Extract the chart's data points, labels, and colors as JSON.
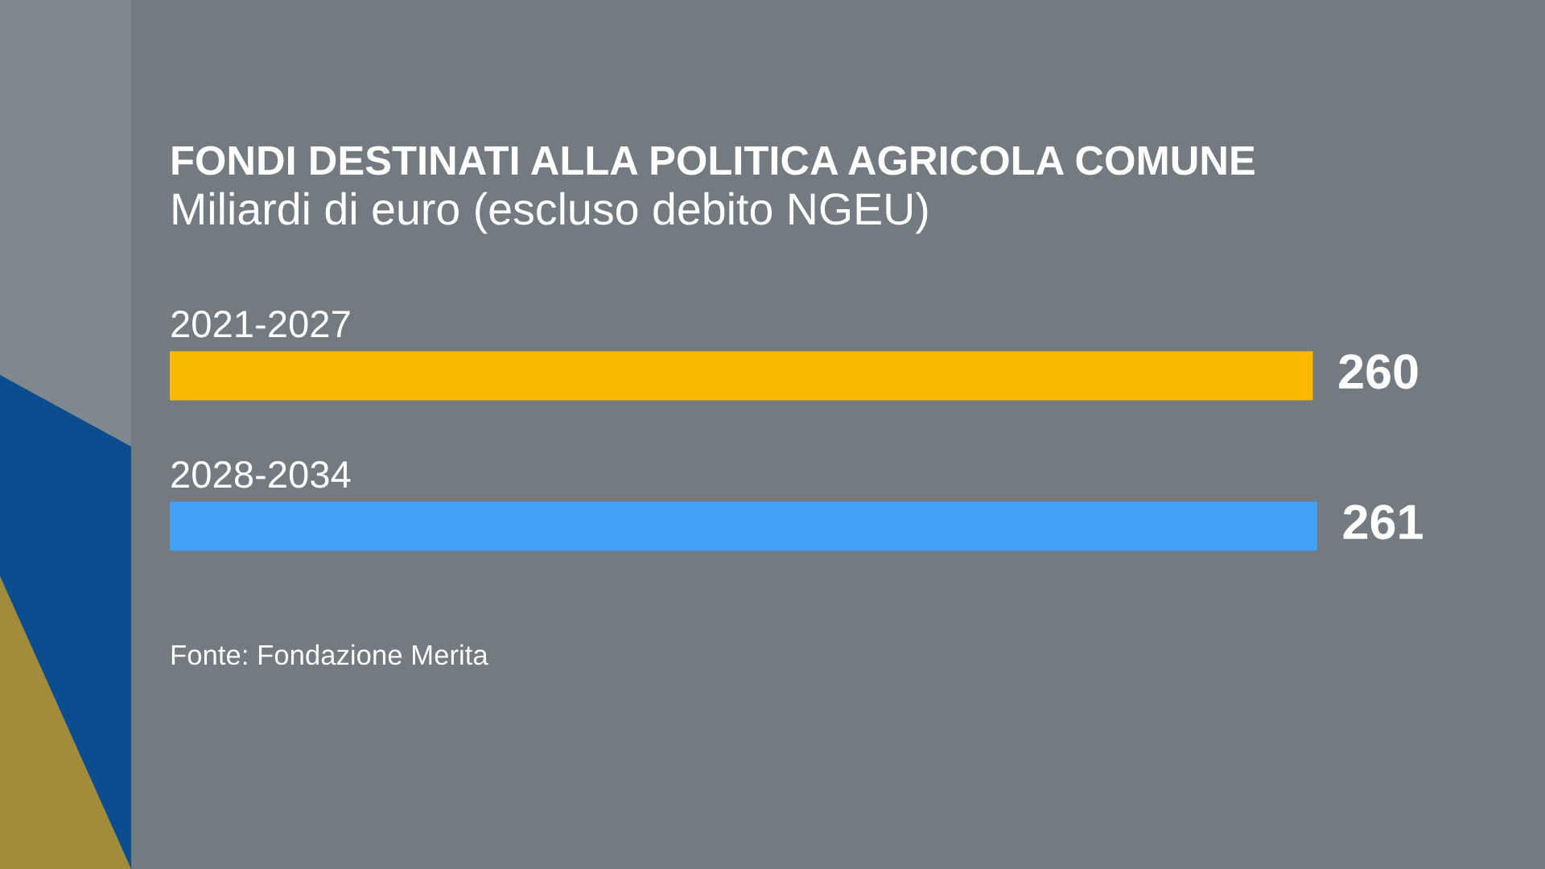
{
  "chart_data": {
    "type": "bar",
    "orientation": "horizontal",
    "title": "FONDI DESTINATI ALLA POLITICA AGRICOLA COMUNE",
    "subtitle": "Miliardi di euro (escluso debito NGEU)",
    "categories": [
      "2021-2027",
      "2028-2034"
    ],
    "values": [
      260,
      261
    ],
    "colors": [
      "#fbba00",
      "#42a0f5"
    ],
    "data_labels": true,
    "annotations": [
      "Fonte: Fondazione Merita"
    ]
  }
}
